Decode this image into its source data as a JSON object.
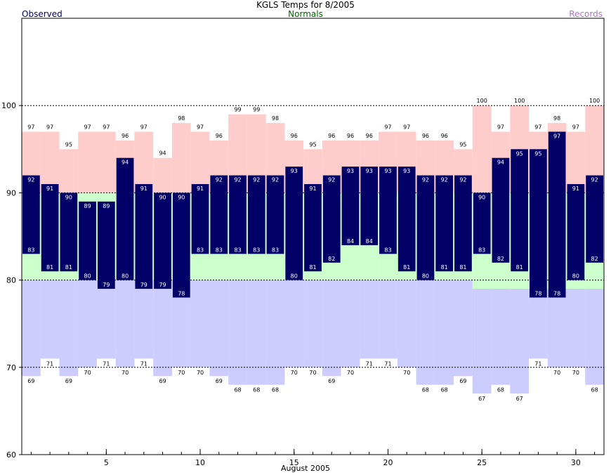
{
  "chart_data": {
    "type": "bar",
    "title": "KGLS Temps for 8/2005",
    "legend": {
      "observed": "Observed",
      "normals": "Normals",
      "records": "Records"
    },
    "xlabel": "August 2005",
    "xlim": [
      0.5,
      31.5
    ],
    "ylim": [
      60,
      110
    ],
    "x_ticks": [
      5,
      10,
      15,
      20,
      25,
      30
    ],
    "y_ticks": [
      60,
      70,
      80,
      90,
      100
    ],
    "grid_lines": [
      70,
      80,
      90,
      100
    ],
    "days": [
      1,
      2,
      3,
      4,
      5,
      6,
      7,
      8,
      9,
      10,
      11,
      12,
      13,
      14,
      15,
      16,
      17,
      18,
      19,
      20,
      21,
      22,
      23,
      24,
      25,
      26,
      27,
      28,
      29,
      30,
      31
    ],
    "series": [
      {
        "name": "Observed",
        "key": "obs_high",
        "values": [
          92,
          91,
          90,
          89,
          89,
          94,
          91,
          90,
          90,
          91,
          92,
          92,
          92,
          92,
          93,
          91,
          92,
          93,
          93,
          93,
          93,
          92,
          92,
          92,
          90,
          94,
          95,
          95,
          97,
          91,
          92
        ]
      },
      {
        "key": "obs_low",
        "values": [
          83,
          81,
          81,
          80,
          79,
          80,
          79,
          79,
          78,
          83,
          83,
          83,
          83,
          83,
          80,
          81,
          82,
          84,
          84,
          83,
          81,
          80,
          81,
          81,
          83,
          82,
          81,
          78,
          78,
          80,
          82
        ]
      },
      {
        "name": "Normals",
        "key": "normal_high",
        "values": [
          90,
          90,
          90,
          90,
          90,
          90,
          90,
          90,
          90,
          90,
          90,
          90,
          90,
          90,
          90,
          90,
          90,
          90,
          90,
          90,
          90,
          90,
          90,
          90,
          90,
          90,
          90,
          90,
          90,
          90,
          90
        ]
      },
      {
        "key": "normal_low",
        "values": [
          80,
          80,
          80,
          80,
          80,
          80,
          80,
          80,
          80,
          80,
          80,
          80,
          80,
          80,
          80,
          80,
          80,
          80,
          80,
          80,
          80,
          80,
          80,
          80,
          79,
          79,
          79,
          79,
          79,
          79,
          79
        ]
      },
      {
        "name": "Records",
        "key": "record_high",
        "values": [
          97,
          97,
          95,
          97,
          97,
          96,
          97,
          94,
          98,
          97,
          96,
          99,
          99,
          98,
          96,
          95,
          96,
          96,
          96,
          97,
          97,
          96,
          96,
          95,
          100,
          97,
          100,
          97,
          98,
          97,
          100
        ]
      },
      {
        "key": "record_low",
        "values": [
          69,
          71,
          69,
          70,
          71,
          70,
          71,
          69,
          70,
          70,
          69,
          68,
          68,
          68,
          70,
          70,
          69,
          70,
          71,
          71,
          70,
          68,
          68,
          69,
          67,
          68,
          67,
          71,
          70,
          70,
          68
        ]
      }
    ],
    "colors": {
      "observed": "#000066",
      "normal": "#ccffcc",
      "record_high": "#ffcccc",
      "record_low_fill": "#ccccff",
      "obs_text": "#ffffff",
      "normals_text": "#006600",
      "records_text": "#b070d0"
    },
    "grid": true
  }
}
